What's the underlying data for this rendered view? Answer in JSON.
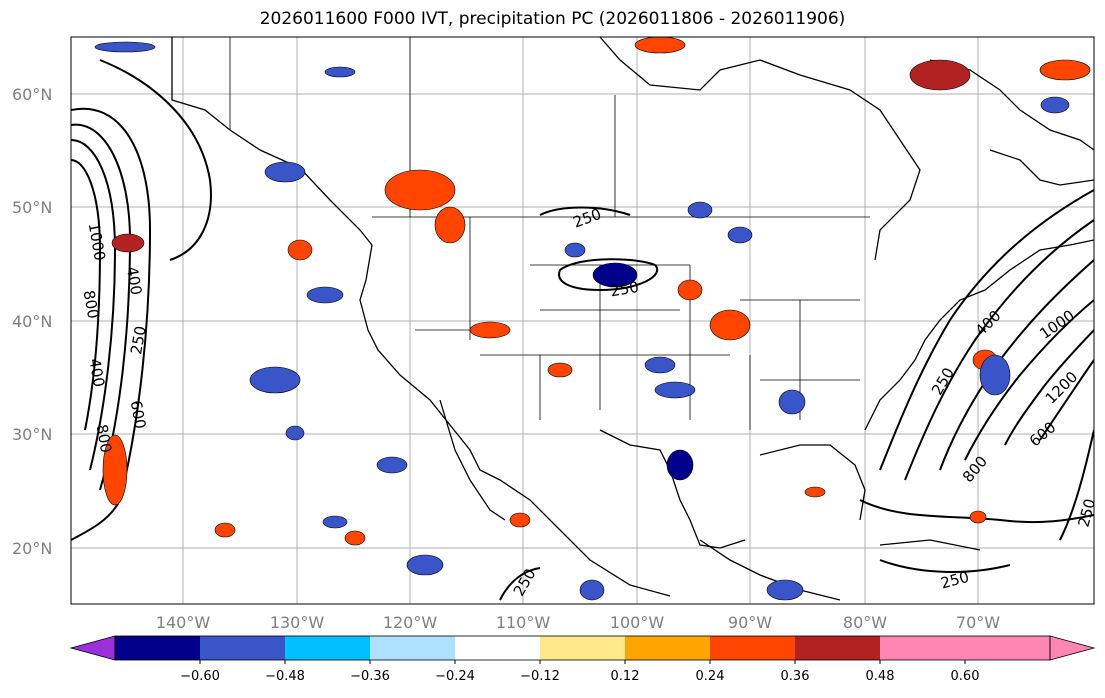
{
  "title": "2026011600 F000 IVT, precipitation PC (2026011806 - 2026011906)",
  "lat_labels": [
    "60°N",
    "50°N",
    "40°N",
    "30°N",
    "20°N"
  ],
  "lon_labels": [
    "140°W",
    "130°W",
    "120°W",
    "110°W",
    "100°W",
    "90°W",
    "80°W",
    "70°W"
  ],
  "colorbar": {
    "ticks": [
      "−0.60",
      "−0.48",
      "−0.36",
      "−0.24",
      "−0.12",
      "0.12",
      "0.24",
      "0.36",
      "0.48",
      "0.60"
    ],
    "colors": [
      "#9b30d9",
      "#00008b",
      "#3a55c8",
      "#00bfff",
      "#aee1ff",
      "#ffffff",
      "#ffe98a",
      "#ffa500",
      "#ff4500",
      "#b22222",
      "#ff85b3",
      "#ff85b3"
    ]
  },
  "contour_labels": [
    "1000",
    "400",
    "800",
    "250",
    "400",
    "600",
    "800",
    "250",
    "250",
    "250",
    "400",
    "1000",
    "1200",
    "600",
    "800",
    "250",
    "250",
    "250"
  ]
}
